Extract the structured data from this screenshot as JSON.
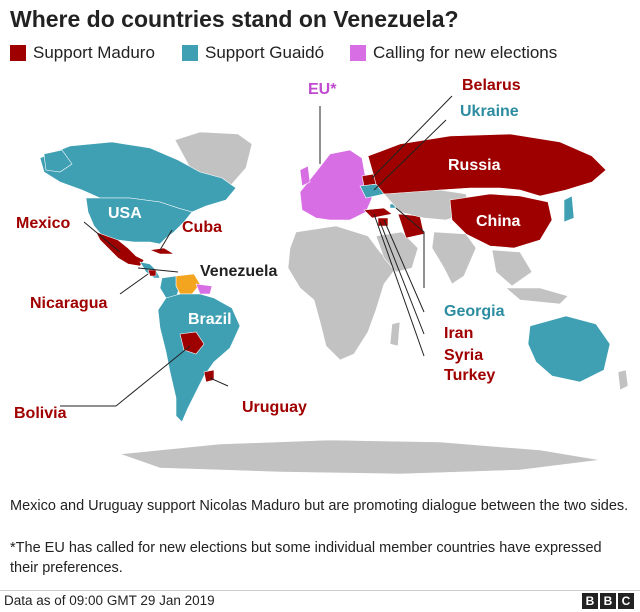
{
  "title": "Where do countries stand on Venezuela?",
  "colors": {
    "maduro": "#9e0000",
    "guaido": "#3fa0b4",
    "elections": "#d86ee4",
    "venezuela": "#f4a51f",
    "land": "#c2c2c2",
    "maduro_text": "#a00000",
    "guaido_text": "#2c8ca0",
    "elections_text": "#c04ad0"
  },
  "legend": [
    {
      "label": "Support Maduro",
      "color": "#9e0000"
    },
    {
      "label": "Support Guaidó",
      "color": "#3fa0b4"
    },
    {
      "label": "Calling for new elections",
      "color": "#d86ee4"
    }
  ],
  "labels": {
    "eu": "EU*",
    "belarus": "Belarus",
    "ukraine": "Ukraine",
    "russia": "Russia",
    "china": "China",
    "usa": "USA",
    "mexico": "Mexico",
    "cuba": "Cuba",
    "venezuela": "Venezuela",
    "nicaragua": "Nicaragua",
    "brazil": "Brazil",
    "georgia": "Georgia",
    "iran": "Iran",
    "syria": "Syria",
    "turkey": "Turkey",
    "uruguay": "Uruguay",
    "bolivia": "Bolivia"
  },
  "notes": [
    "Mexico and Uruguay support Nicolas Maduro but are promoting dialogue between the two sides.",
    "*The EU has called for new elections but some individual member countries have expressed their preferences."
  ],
  "footer": "Data as of 09:00 GMT 29 Jan 2019",
  "logo": [
    "B",
    "B",
    "C"
  ]
}
